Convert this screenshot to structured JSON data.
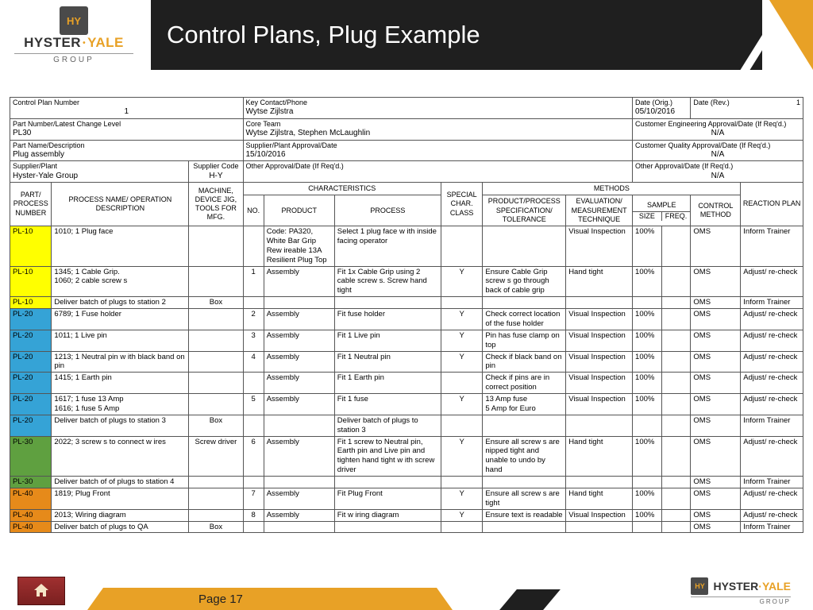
{
  "title": "Control Plans, Plug Example",
  "page_label": "Page 17",
  "brand": {
    "name1": "HYSTER",
    "name2": "YALE",
    "sub": "GROUP",
    "icon": "HY"
  },
  "meta": {
    "r1": {
      "c1l": "Control Plan Number",
      "c1v": "1",
      "c2l": "Key Contact/Phone",
      "c2v": "Wytse Zijlstra",
      "c3l": "Date (Orig.)",
      "c3v": "05/10/2016",
      "c4l": "Date (Rev.)",
      "c4v": "1"
    },
    "r2": {
      "c1l": "Part Number/Latest Change Level",
      "c1v": "PL30",
      "c2l": "Core Team",
      "c2v": "Wytse Zijlstra, Stephen McLaughlin",
      "c3l": "Customer Engineering Approval/Date (If Req'd.)",
      "c3v": "N/A"
    },
    "r3": {
      "c1l": "Part Name/Description",
      "c1v": "Plug assembly",
      "c2l": "Supplier/Plant Approval/Date",
      "c2v": "15/10/2016",
      "c3l": "Customer Quality Approval/Date (If Req'd.)",
      "c3v": "N/A"
    },
    "r4": {
      "c1l": "Supplier/Plant",
      "c1v": "Hyster-Yale Group",
      "c2l": "Supplier Code",
      "c2v": "H-Y",
      "c3l": "Other Approval/Date (If Req'd.)",
      "c3v": "",
      "c4l": "Other Approval/Date (If Req'd.)",
      "c4v": "N/A"
    }
  },
  "hdr": {
    "part": "PART/ PROCESS NUMBER",
    "proc": "PROCESS NAME/ OPERATION DESCRIPTION",
    "mach": "MACHINE, DEVICE JIG, TOOLS FOR MFG.",
    "char": "CHARACTERISTICS",
    "no": "NO.",
    "prod": "PRODUCT",
    "process": "PROCESS",
    "spec": "SPECIAL CHAR. CLASS",
    "meth": "METHODS",
    "pp": "PRODUCT/PROCESS SPECIFICATION/ TOLERANCE",
    "ev": "EVALUATION/ MEASUREMENT TECHNIQUE",
    "samp": "SAMPLE",
    "size": "SIZE",
    "freq": "FREQ.",
    "ctrl": "CONTROL METHOD",
    "react": "REACTION PLAN"
  },
  "rows": [
    {
      "cls": "c-yellow",
      "p": "PL-10",
      "proc": "1010; 1 Plug face",
      "mach": "",
      "no": "",
      "prod": "Code: PA320, White Bar Grip Rew ireable 13A Resilient Plug Top",
      "process": "Select 1 plug face w ith inside facing operator",
      "sc": "",
      "spec": "",
      "ev": "Visual Inspection",
      "sz": "100%",
      "fq": "",
      "cm": "OMS",
      "rx": "Inform Trainer"
    },
    {
      "cls": "c-yellow",
      "p": "PL-10",
      "proc": "1345; 1 Cable Grip.\n1060; 2 cable screw s",
      "mach": "",
      "no": "1",
      "prod": "Assembly",
      "process": "Fit 1x Cable Grip using 2 cable screw s. Screw  hand tight",
      "sc": "Y",
      "spec": "Ensure Cable Grip screw s go through back of cable grip",
      "ev": "Hand tight",
      "sz": "100%",
      "fq": "",
      "cm": "OMS",
      "rx": "Adjust/ re-check"
    },
    {
      "cls": "c-yellow",
      "p": "PL-10",
      "proc": "Deliver batch of plugs to station 2",
      "mach": "Box",
      "no": "",
      "prod": "",
      "process": "",
      "sc": "",
      "spec": "",
      "ev": "",
      "sz": "",
      "fq": "",
      "cm": "OMS",
      "rx": "Inform Trainer"
    },
    {
      "cls": "c-blue",
      "p": "PL-20",
      "proc": "6789; 1 Fuse holder",
      "mach": "",
      "no": "2",
      "prod": "Assembly",
      "process": "Fit fuse holder",
      "sc": "Y",
      "spec": "Check correct location of the fuse holder",
      "ev": "Visual Inspection",
      "sz": "100%",
      "fq": "",
      "cm": "OMS",
      "rx": "Adjust/ re-check"
    },
    {
      "cls": "c-blue",
      "p": "PL-20",
      "proc": "1011; 1 Live pin",
      "mach": "",
      "no": "3",
      "prod": "Assembly",
      "process": "Fit 1 Live pin",
      "sc": "Y",
      "spec": "Pin has fuse clamp on top",
      "ev": "Visual Inspection",
      "sz": "100%",
      "fq": "",
      "cm": "OMS",
      "rx": "Adjust/ re-check"
    },
    {
      "cls": "c-blue",
      "p": "PL-20",
      "proc": "1213; 1 Neutral pin w ith black band on pin",
      "mach": "",
      "no": "4",
      "prod": "Assembly",
      "process": "Fit 1 Neutral pin",
      "sc": "Y",
      "spec": "Check if black band on pin",
      "ev": "Visual Inspection",
      "sz": "100%",
      "fq": "",
      "cm": "OMS",
      "rx": "Adjust/ re-check"
    },
    {
      "cls": "c-blue",
      "p": "PL-20",
      "proc": "1415; 1 Earth pin",
      "mach": "",
      "no": "",
      "prod": "Assembly",
      "process": "Fit 1 Earth pin",
      "sc": "",
      "spec": "Check if pins are in correct position",
      "ev": "Visual Inspection",
      "sz": "100%",
      "fq": "",
      "cm": "OMS",
      "rx": "Adjust/ re-check"
    },
    {
      "cls": "c-blue",
      "p": "PL-20",
      "proc": "1617; 1 fuse 13 Amp\n1616; 1 fuse 5 Amp",
      "mach": "",
      "no": "5",
      "prod": "Assembly",
      "process": "Fit 1 fuse",
      "sc": "Y",
      "spec": "13 Amp fuse\n5 Amp for Euro",
      "ev": "Visual Inspection",
      "sz": "100%",
      "fq": "",
      "cm": "OMS",
      "rx": "Adjust/ re-check"
    },
    {
      "cls": "c-blue",
      "p": "PL-20",
      "proc": "Deliver batch of plugs to station 3",
      "mach": "Box",
      "no": "",
      "prod": "",
      "process": "Deliver batch of plugs to station 3",
      "sc": "",
      "spec": "",
      "ev": "",
      "sz": "",
      "fq": "",
      "cm": "OMS",
      "rx": "Inform Trainer"
    },
    {
      "cls": "c-green",
      "p": "PL-30",
      "proc": "2022; 3 screw s to connect w ires",
      "mach": "Screw  driver",
      "no": "6",
      "prod": "Assembly",
      "process": "Fit 1 screw  to Neutral pin, Earth pin and Live pin and tighten hand tight w ith screw  driver",
      "sc": "Y",
      "spec": "Ensure all screw s are nipped tight and unable to undo by hand",
      "ev": "Hand tight",
      "sz": "100%",
      "fq": "",
      "cm": "OMS",
      "rx": "Adjust/ re-check"
    },
    {
      "cls": "c-green",
      "p": "PL-30",
      "proc": "Deliver batch of of plugs to station 4",
      "mach": "",
      "no": "",
      "prod": "",
      "process": "",
      "sc": "",
      "spec": "",
      "ev": "",
      "sz": "",
      "fq": "",
      "cm": "OMS",
      "rx": "Inform Trainer"
    },
    {
      "cls": "c-orange",
      "p": "PL-40",
      "proc": "1819; Plug Front",
      "mach": "",
      "no": "7",
      "prod": "Assembly",
      "process": "Fit Plug Front",
      "sc": "Y",
      "spec": "Ensure all screw s are tight",
      "ev": "Hand tight",
      "sz": "100%",
      "fq": "",
      "cm": "OMS",
      "rx": "Adjust/ re-check"
    },
    {
      "cls": "c-orange",
      "p": "PL-40",
      "proc": "2013; Wiring diagram",
      "mach": "",
      "no": "8",
      "prod": "Assembly",
      "process": "Fit w iring diagram",
      "sc": "Y",
      "spec": "Ensure text is readable",
      "ev": "Visual Inspection",
      "sz": "100%",
      "fq": "",
      "cm": "OMS",
      "rx": "Adjust/ re-check"
    },
    {
      "cls": "c-orange",
      "p": "PL-40",
      "proc": "Deliver batch of plugs to QA",
      "mach": "Box",
      "no": "",
      "prod": "",
      "process": "",
      "sc": "",
      "spec": "",
      "ev": "",
      "sz": "",
      "fq": "",
      "cm": "OMS",
      "rx": "Inform Trainer"
    }
  ],
  "colors": {
    "yellow": "#ffff00",
    "blue": "#35a3d6",
    "green": "#5fa040",
    "orange": "#e68a1a",
    "accent": "#e8a126",
    "dark": "#1f1f1f"
  }
}
